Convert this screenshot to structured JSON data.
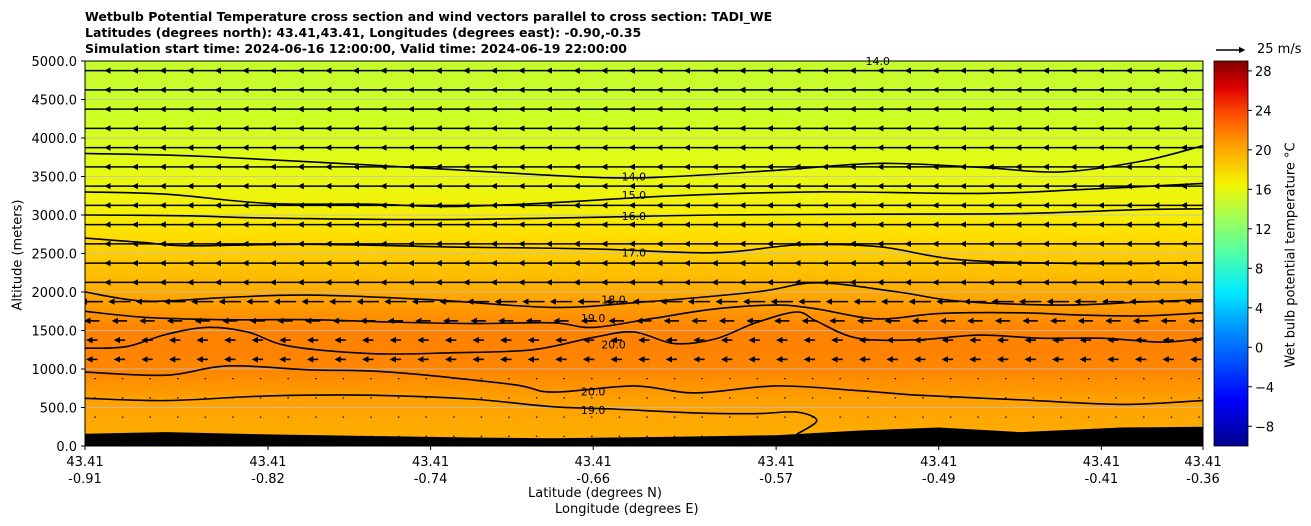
{
  "chart_data": {
    "type": "cross_section_contour",
    "title_lines": [
      "Wetbulb Potential Temperature cross section and wind vectors parallel to cross section: TADI_WE",
      "Latitudes (degrees north): 43.41,43.41, Longitudes (degrees east): -0.90,-0.35",
      "Simulation start time: 2024-06-16 12:00:00, Valid time: 2024-06-19 22:00:00"
    ],
    "xlabel_lat": "Latitude (degrees N)",
    "xlabel_lon": "Longitude (degrees E)",
    "ylabel": "Altitude (meters)",
    "colorbar_label": "Wet bulb potential temperature $^\\circ$C",
    "colorbar_label_display": "Wet bulb potential temperature °C",
    "reference_vector_label": "25 m/s",
    "x_ticks_lat": [
      "43.41",
      "43.41",
      "43.41",
      "43.41",
      "43.41",
      "43.41",
      "43.41",
      "43.41"
    ],
    "x_ticks_lon": [
      "-0.91",
      "-0.82",
      "-0.74",
      "-0.66",
      "-0.57",
      "-0.49",
      "-0.41",
      "-0.36"
    ],
    "x_tick_values": [
      -0.91,
      -0.82,
      -0.74,
      -0.66,
      -0.57,
      -0.49,
      -0.41,
      -0.36
    ],
    "xlim": [
      -0.91,
      -0.36
    ],
    "y_ticks": [
      "0.0",
      "500.0",
      "1000.0",
      "1500.0",
      "2000.0",
      "2500.0",
      "3000.0",
      "3500.0",
      "4000.0",
      "4500.0",
      "5000.0"
    ],
    "ylim": [
      0,
      5000
    ],
    "colorbar_ticks": [
      "28",
      "24",
      "20",
      "16",
      "12",
      "8",
      "4",
      "0",
      "−4",
      "−8"
    ],
    "colorbar_range": [
      -10,
      29
    ],
    "contour_labels": [
      {
        "text": "14.0",
        "x": -0.64,
        "y": 3500
      },
      {
        "text": "15.0",
        "x": -0.64,
        "y": 3260
      },
      {
        "text": "16.0",
        "x": -0.64,
        "y": 2990
      },
      {
        "text": "17.0",
        "x": -0.64,
        "y": 2510
      },
      {
        "text": "18.0",
        "x": -0.65,
        "y": 1900
      },
      {
        "text": "19.0",
        "x": -0.66,
        "y": 1660
      },
      {
        "text": "20.0",
        "x": -0.65,
        "y": 1320
      },
      {
        "text": "20.0",
        "x": -0.66,
        "y": 710
      },
      {
        "text": "19.0",
        "x": -0.66,
        "y": 470
      },
      {
        "text": "14.0",
        "x": -0.52,
        "y": 5000
      }
    ],
    "contours": [
      {
        "level": 14,
        "points": [
          [
            -0.91,
            3800
          ],
          [
            -0.85,
            3760
          ],
          [
            -0.75,
            3620
          ],
          [
            -0.66,
            3490
          ],
          [
            -0.62,
            3500
          ],
          [
            -0.57,
            3580
          ],
          [
            -0.52,
            3670
          ],
          [
            -0.47,
            3620
          ],
          [
            -0.43,
            3560
          ],
          [
            -0.39,
            3700
          ],
          [
            -0.36,
            3900
          ]
        ]
      },
      {
        "level": 15,
        "points": [
          [
            -0.91,
            3300
          ],
          [
            -0.87,
            3270
          ],
          [
            -0.82,
            3150
          ],
          [
            -0.77,
            3140
          ],
          [
            -0.73,
            3110
          ],
          [
            -0.68,
            3160
          ],
          [
            -0.62,
            3250
          ],
          [
            -0.55,
            3300
          ],
          [
            -0.47,
            3280
          ],
          [
            -0.42,
            3330
          ],
          [
            -0.36,
            3410
          ]
        ]
      },
      {
        "level": 16,
        "points": [
          [
            -0.91,
            3000
          ],
          [
            -0.86,
            2990
          ],
          [
            -0.82,
            2960
          ],
          [
            -0.74,
            2940
          ],
          [
            -0.66,
            2970
          ],
          [
            -0.6,
            3000
          ],
          [
            -0.52,
            3010
          ],
          [
            -0.45,
            3020
          ],
          [
            -0.39,
            3070
          ],
          [
            -0.36,
            3080
          ]
        ]
      },
      {
        "level": 17,
        "points": [
          [
            -0.91,
            2700
          ],
          [
            -0.88,
            2640
          ],
          [
            -0.86,
            2600
          ],
          [
            -0.8,
            2620
          ],
          [
            -0.72,
            2580
          ],
          [
            -0.66,
            2560
          ],
          [
            -0.6,
            2510
          ],
          [
            -0.56,
            2610
          ],
          [
            -0.52,
            2590
          ],
          [
            -0.48,
            2420
          ],
          [
            -0.42,
            2370
          ],
          [
            -0.36,
            2380
          ]
        ]
      },
      {
        "level": 18,
        "points": [
          [
            -0.91,
            2000
          ],
          [
            -0.88,
            1880
          ],
          [
            -0.84,
            1930
          ],
          [
            -0.8,
            1960
          ],
          [
            -0.74,
            1900
          ],
          [
            -0.68,
            1800
          ],
          [
            -0.64,
            1860
          ],
          [
            -0.58,
            2000
          ],
          [
            -0.55,
            2120
          ],
          [
            -0.51,
            2000
          ],
          [
            -0.48,
            1880
          ],
          [
            -0.43,
            1830
          ],
          [
            -0.39,
            1870
          ],
          [
            -0.36,
            1900
          ]
        ]
      },
      {
        "level": 19,
        "points": [
          [
            -0.91,
            1750
          ],
          [
            -0.88,
            1670
          ],
          [
            -0.84,
            1640
          ],
          [
            -0.8,
            1640
          ],
          [
            -0.76,
            1610
          ],
          [
            -0.72,
            1590
          ],
          [
            -0.68,
            1600
          ],
          [
            -0.66,
            1540
          ],
          [
            -0.63,
            1660
          ],
          [
            -0.6,
            1780
          ],
          [
            -0.57,
            1830
          ],
          [
            -0.55,
            1780
          ],
          [
            -0.52,
            1650
          ],
          [
            -0.49,
            1720
          ],
          [
            -0.45,
            1730
          ],
          [
            -0.42,
            1700
          ],
          [
            -0.39,
            1690
          ],
          [
            -0.36,
            1730
          ]
        ]
      },
      {
        "level": 20,
        "points": [
          [
            -0.91,
            1270
          ],
          [
            -0.89,
            1290
          ],
          [
            -0.87,
            1450
          ],
          [
            -0.85,
            1540
          ],
          [
            -0.83,
            1480
          ],
          [
            -0.81,
            1300
          ],
          [
            -0.77,
            1200
          ],
          [
            -0.73,
            1210
          ],
          [
            -0.69,
            1250
          ],
          [
            -0.66,
            1410
          ],
          [
            -0.64,
            1480
          ],
          [
            -0.62,
            1330
          ],
          [
            -0.6,
            1390
          ],
          [
            -0.58,
            1600
          ],
          [
            -0.56,
            1740
          ],
          [
            -0.55,
            1620
          ],
          [
            -0.53,
            1400
          ],
          [
            -0.5,
            1380
          ],
          [
            -0.47,
            1440
          ],
          [
            -0.44,
            1400
          ],
          [
            -0.41,
            1400
          ],
          [
            -0.38,
            1350
          ],
          [
            -0.36,
            1400
          ]
        ]
      },
      {
        "level": 20,
        "points": [
          [
            -0.91,
            960
          ],
          [
            -0.87,
            920
          ],
          [
            -0.84,
            1040
          ],
          [
            -0.8,
            990
          ],
          [
            -0.76,
            960
          ],
          [
            -0.7,
            800
          ],
          [
            -0.68,
            700
          ],
          [
            -0.64,
            780
          ],
          [
            -0.61,
            690
          ],
          [
            -0.57,
            780
          ],
          [
            -0.53,
            720
          ],
          [
            -0.5,
            660
          ],
          [
            -0.45,
            600
          ],
          [
            -0.4,
            540
          ],
          [
            -0.36,
            590
          ]
        ]
      },
      {
        "level": 19,
        "points": [
          [
            -0.91,
            620
          ],
          [
            -0.87,
            590
          ],
          [
            -0.82,
            650
          ],
          [
            -0.77,
            660
          ],
          [
            -0.72,
            610
          ],
          [
            -0.68,
            510
          ],
          [
            -0.65,
            480
          ],
          [
            -0.61,
            430
          ],
          [
            -0.58,
            420
          ],
          [
            -0.56,
            440
          ],
          [
            -0.55,
            330
          ],
          [
            -0.56,
            150
          ]
        ]
      }
    ],
    "terrain": [
      [
        -0.91,
        160
      ],
      [
        -0.87,
        180
      ],
      [
        -0.82,
        150
      ],
      [
        -0.77,
        130
      ],
      [
        -0.72,
        110
      ],
      [
        -0.68,
        100
      ],
      [
        -0.62,
        120
      ],
      [
        -0.57,
        140
      ],
      [
        -0.53,
        200
      ],
      [
        -0.49,
        240
      ],
      [
        -0.45,
        180
      ],
      [
        -0.4,
        240
      ],
      [
        -0.36,
        250
      ]
    ],
    "colors": {
      "top_band": "#c8ff28",
      "mid_band": "#f2f600",
      "upper_orange": "#ffc200",
      "orange": "#ffa800",
      "dark_orange": "#ff7a00",
      "terrain": "#000000",
      "grid": "#bfbfbf"
    }
  }
}
